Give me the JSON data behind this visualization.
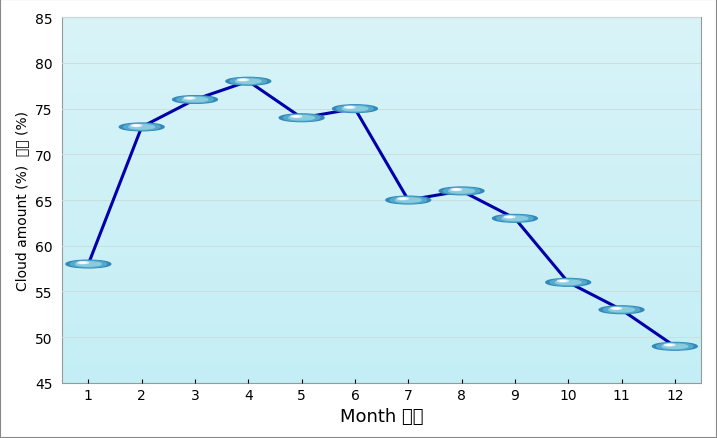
{
  "months": [
    1,
    2,
    3,
    4,
    5,
    6,
    7,
    8,
    9,
    10,
    11,
    12
  ],
  "values": [
    58,
    73,
    76,
    78,
    74,
    75,
    65,
    66,
    63,
    56,
    53,
    49
  ],
  "xlabel": "Month 月份",
  "ylabel_en": "Cloud amount (%)",
  "ylabel_cn": "雲量 (%)",
  "ylim": [
    45,
    85
  ],
  "yticks": [
    45,
    50,
    55,
    60,
    65,
    70,
    75,
    80,
    85
  ],
  "xlim": [
    0.5,
    12.5
  ],
  "xticks": [
    1,
    2,
    3,
    4,
    5,
    6,
    7,
    8,
    9,
    10,
    11,
    12
  ],
  "line_color": "#0000AA",
  "fig_bg_color": "#FFFFFF",
  "plot_bg_top": "#D8F4F8",
  "plot_bg_bottom": "#B8E8F0",
  "border_color": "#AAAAAA",
  "grid_color": "#CCDDDD",
  "xlabel_fontsize": 13,
  "ylabel_fontsize": 10,
  "tick_fontsize": 10
}
